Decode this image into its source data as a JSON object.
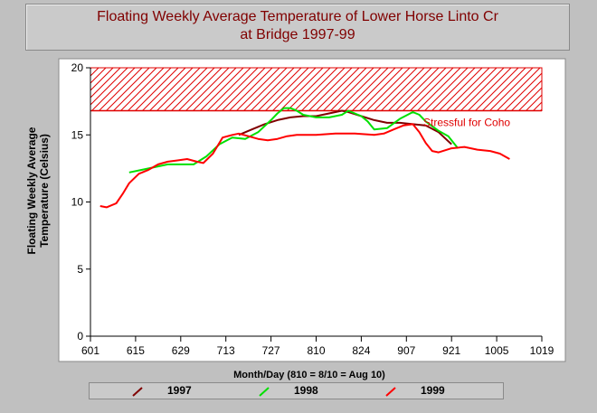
{
  "chart_data": {
    "type": "line",
    "title_lines": [
      "Floating Weekly Average Temperature of Lower Horse Linto Cr",
      "at Bridge 1997-99"
    ],
    "xlabel": "Month/Day (810 = 8/10 = Aug 10)",
    "ylabel_lines": [
      "Floating Weekly Average",
      "Temperature (Celsius)"
    ],
    "x_ticks": [
      "601",
      "615",
      "629",
      "713",
      "727",
      "810",
      "824",
      "907",
      "921",
      "1005",
      "1019"
    ],
    "x_domain_days": [
      0,
      140
    ],
    "ylim": [
      0,
      20
    ],
    "y_ticks": [
      0,
      5,
      10,
      15,
      20
    ],
    "threshold": {
      "value": 16.8,
      "upper": 20,
      "label": "Stressful for Coho",
      "color": "#e00000"
    },
    "series": [
      {
        "name": "1997",
        "color": "#800000",
        "points": [
          [
            46,
            15.0
          ],
          [
            50,
            15.4
          ],
          [
            54,
            15.8
          ],
          [
            58,
            16.1
          ],
          [
            62,
            16.3
          ],
          [
            66,
            16.4
          ],
          [
            70,
            16.4
          ],
          [
            74,
            16.6
          ],
          [
            78,
            16.8
          ],
          [
            80,
            16.7
          ],
          [
            84,
            16.4
          ],
          [
            88,
            16.1
          ],
          [
            92,
            15.9
          ],
          [
            96,
            15.9
          ],
          [
            100,
            15.8
          ],
          [
            104,
            15.7
          ],
          [
            108,
            15.2
          ],
          [
            112,
            14.3
          ]
        ]
      },
      {
        "name": "1998",
        "color": "#00e000",
        "points": [
          [
            12,
            12.2
          ],
          [
            16,
            12.4
          ],
          [
            20,
            12.6
          ],
          [
            24,
            12.8
          ],
          [
            28,
            12.8
          ],
          [
            32,
            12.8
          ],
          [
            36,
            13.4
          ],
          [
            40,
            14.3
          ],
          [
            44,
            14.8
          ],
          [
            48,
            14.7
          ],
          [
            52,
            15.2
          ],
          [
            56,
            16.1
          ],
          [
            58,
            16.6
          ],
          [
            60,
            17.0
          ],
          [
            62,
            17.0
          ],
          [
            64,
            16.8
          ],
          [
            66,
            16.5
          ],
          [
            70,
            16.3
          ],
          [
            74,
            16.3
          ],
          [
            78,
            16.5
          ],
          [
            80,
            16.8
          ],
          [
            84,
            16.4
          ],
          [
            86,
            16.0
          ],
          [
            88,
            15.4
          ],
          [
            92,
            15.5
          ],
          [
            96,
            16.2
          ],
          [
            100,
            16.7
          ],
          [
            102,
            16.5
          ],
          [
            104,
            16.0
          ],
          [
            108,
            15.3
          ],
          [
            111,
            14.9
          ],
          [
            114,
            14.0
          ]
        ]
      },
      {
        "name": "1999",
        "color": "#ff0000",
        "points": [
          [
            3,
            9.7
          ],
          [
            5,
            9.6
          ],
          [
            8,
            9.9
          ],
          [
            10,
            10.6
          ],
          [
            12,
            11.4
          ],
          [
            15,
            12.1
          ],
          [
            18,
            12.4
          ],
          [
            21,
            12.8
          ],
          [
            24,
            13.0
          ],
          [
            27,
            13.1
          ],
          [
            30,
            13.2
          ],
          [
            33,
            13.0
          ],
          [
            35,
            12.9
          ],
          [
            38,
            13.6
          ],
          [
            41,
            14.8
          ],
          [
            44,
            15.0
          ],
          [
            46,
            15.1
          ],
          [
            49,
            14.9
          ],
          [
            52,
            14.7
          ],
          [
            55,
            14.6
          ],
          [
            58,
            14.7
          ],
          [
            61,
            14.9
          ],
          [
            64,
            15.0
          ],
          [
            70,
            15.0
          ],
          [
            76,
            15.1
          ],
          [
            82,
            15.1
          ],
          [
            88,
            15.0
          ],
          [
            91,
            15.1
          ],
          [
            94,
            15.4
          ],
          [
            97,
            15.7
          ],
          [
            100,
            15.8
          ],
          [
            102,
            15.2
          ],
          [
            104,
            14.4
          ],
          [
            106,
            13.8
          ],
          [
            108,
            13.7
          ],
          [
            112,
            14.0
          ],
          [
            116,
            14.1
          ],
          [
            120,
            13.9
          ],
          [
            124,
            13.8
          ],
          [
            127,
            13.6
          ],
          [
            130,
            13.2
          ]
        ]
      }
    ]
  }
}
